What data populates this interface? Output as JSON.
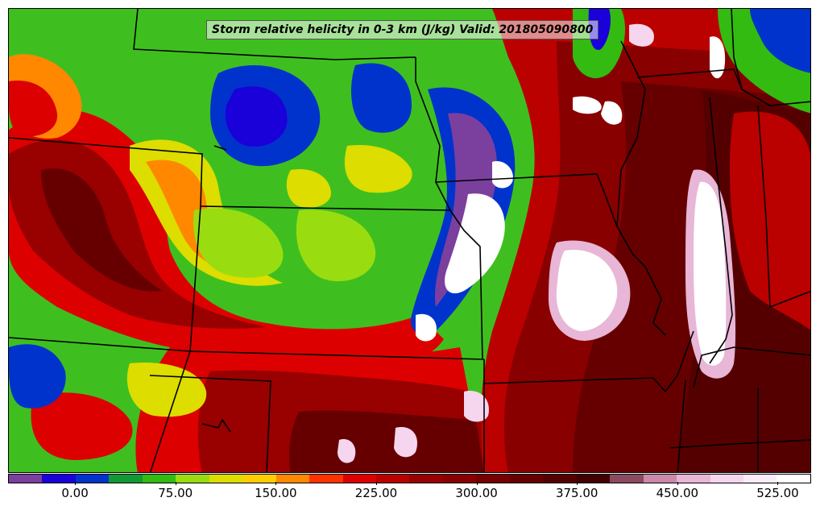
{
  "title": "Storm relative helicity in 0-3 km (J/kg) Valid: 201805090800",
  "colorbar": {
    "colors": [
      "#7b3f9e",
      "#1a00d9",
      "#0033cc",
      "#119933",
      "#33bb11",
      "#99dd11",
      "#dddd00",
      "#ffcc00",
      "#ff8800",
      "#ff3300",
      "#dd0000",
      "#bb0000",
      "#990000",
      "#880000",
      "#770000",
      "#660000",
      "#550000",
      "#440000",
      "#8a4a5f",
      "#cc88aa",
      "#e8b6d6",
      "#f5d6ee",
      "#fbeaf8",
      "#ffffff"
    ],
    "tick_labels": [
      "0.00",
      "75.00",
      "150.00",
      "225.00",
      "300.00",
      "375.00",
      "450.00",
      "525.00"
    ]
  },
  "map_colors": {
    "purple": "#7b3f9e",
    "blue": "#1a00d9",
    "darkblue": "#0033cc",
    "darkgreen": "#119933",
    "green": "#33bb11",
    "lime": "#99dd11",
    "yellow": "#dddd00",
    "orange": "#ff8800",
    "red": "#dd0000",
    "darkred": "#990000",
    "maroon": "#660000",
    "mauve": "#8a4a5f",
    "pink": "#e8b6d6",
    "white": "#ffffff"
  }
}
